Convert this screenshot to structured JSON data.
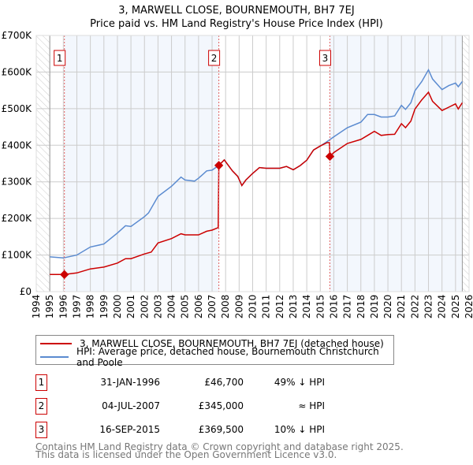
{
  "chart_data": {
    "type": "line",
    "title": "3, MARWELL CLOSE, BOURNEMOUTH, BH7 7EJ",
    "subtitle": "Price paid vs. HM Land Registry's House Price Index (HPI)",
    "xlim": [
      1994,
      2026
    ],
    "ylim": [
      0,
      700000
    ],
    "x_ticks": [
      "1994",
      "1995",
      "1996",
      "1997",
      "1998",
      "1999",
      "2000",
      "2001",
      "2002",
      "2003",
      "2004",
      "2005",
      "2006",
      "2007",
      "2008",
      "2009",
      "2010",
      "2011",
      "2012",
      "2013",
      "2014",
      "2015",
      "2016",
      "2017",
      "2018",
      "2019",
      "2020",
      "2021",
      "2022",
      "2023",
      "2024",
      "2025",
      "2026"
    ],
    "y_ticks": [
      {
        "v": 0,
        "label": "£0"
      },
      {
        "v": 100000,
        "label": "£100K"
      },
      {
        "v": 200000,
        "label": "£200K"
      },
      {
        "v": 300000,
        "label": "£300K"
      },
      {
        "v": 400000,
        "label": "£400K"
      },
      {
        "v": 500000,
        "label": "£500K"
      },
      {
        "v": 600000,
        "label": "£600K"
      },
      {
        "v": 700000,
        "label": "£700K"
      }
    ],
    "grid": true,
    "series": [
      {
        "name": "3, MARWELL CLOSE, BOURNEMOUTH, BH7 7EJ (detached house)",
        "color": "#cc0000",
        "x": [
          1995,
          1996.08,
          1997,
          1998,
          1999,
          2000,
          2000.6,
          2001,
          2002,
          2002.5,
          2003,
          2004,
          2004.7,
          2005,
          2006,
          2006.6,
          2007,
          2007.45,
          2007.5,
          2007.9,
          2008.5,
          2008.9,
          2009.2,
          2009.5,
          2010,
          2010.5,
          2011,
          2012,
          2012.5,
          2013,
          2013.5,
          2014,
          2014.5,
          2015,
          2015.5,
          2015.68,
          2015.71,
          2016,
          2017,
          2018,
          2018.5,
          2019,
          2019.5,
          2020,
          2020.5,
          2021,
          2021.3,
          2021.7,
          2022,
          2022.5,
          2023,
          2023.3,
          2024,
          2024.5,
          2025,
          2025.2,
          2025.5
        ],
        "y": [
          47000,
          46700,
          51000,
          62000,
          67000,
          78000,
          90000,
          90000,
          103000,
          108000,
          133000,
          145000,
          158000,
          155000,
          155000,
          165000,
          168000,
          175000,
          345000,
          360000,
          330000,
          315000,
          290000,
          305000,
          323000,
          339000,
          337000,
          337000,
          342000,
          333000,
          344000,
          359000,
          387000,
          398000,
          407000,
          407000,
          369500,
          380000,
          405000,
          416000,
          427000,
          438000,
          427000,
          429000,
          430000,
          459000,
          448000,
          466000,
          499000,
          524000,
          545000,
          520000,
          495000,
          504000,
          513000,
          499000,
          516000
        ]
      },
      {
        "name": "HPI: Average price, detached house, Bournemouth Christchurch and Poole",
        "color": "#5b8bd0",
        "x": [
          1995,
          1996,
          1997,
          1998,
          1999,
          2000,
          2000.6,
          2001,
          2002,
          2002.3,
          2003,
          2004,
          2004.7,
          2005,
          2005.7,
          2006,
          2006.6,
          2007,
          2007.5,
          2007.9,
          2008.5,
          2008.9,
          2009.2,
          2009.5,
          2010,
          2010.5,
          2011,
          2012,
          2012.5,
          2013,
          2013.5,
          2014,
          2014.5,
          2015,
          2015.5,
          2016,
          2017,
          2018,
          2018.5,
          2019,
          2019.5,
          2020,
          2020.5,
          2021,
          2021.3,
          2021.7,
          2022,
          2022.5,
          2023,
          2023.3,
          2024,
          2024.5,
          2025,
          2025.2,
          2025.5
        ],
        "y": [
          95000,
          92000,
          100000,
          122000,
          130000,
          160000,
          180000,
          178000,
          205000,
          215000,
          260000,
          288000,
          313000,
          305000,
          302000,
          310000,
          330000,
          332000,
          345000,
          360000,
          330000,
          315000,
          290000,
          305000,
          323000,
          339000,
          337000,
          337000,
          342000,
          333000,
          344000,
          359000,
          387000,
          398000,
          410000,
          423000,
          448000,
          463000,
          484000,
          484000,
          477000,
          477000,
          480000,
          509000,
          498000,
          516000,
          549000,
          574000,
          606000,
          581000,
          552000,
          563000,
          570000,
          560000,
          574000
        ]
      }
    ],
    "sales": [
      {
        "label": "1",
        "x": 2007.5,
        "xsale": 1996.08,
        "price": 46700
      },
      {
        "label": "2",
        "xsale": 2007.5,
        "price": 345000
      },
      {
        "label": "3",
        "xsale": 2015.71,
        "price": 369500
      }
    ],
    "data_start": 1995,
    "data_end": 2025.5,
    "legend_placement": "bottom"
  },
  "legend": [
    {
      "label": "3, MARWELL CLOSE, BOURNEMOUTH, BH7 7EJ (detached house)",
      "color": "#cc0000"
    },
    {
      "label": "HPI: Average price, detached house, Bournemouth Christchurch and Poole",
      "color": "#5b8bd0"
    }
  ],
  "transactions": [
    {
      "num": "1",
      "date": "31-JAN-1996",
      "price": "£46,700",
      "hpi": "49% ↓ HPI"
    },
    {
      "num": "2",
      "date": "04-JUL-2007",
      "price": "£345,000",
      "hpi": "≈ HPI"
    },
    {
      "num": "3",
      "date": "16-SEP-2015",
      "price": "£369,500",
      "hpi": "10% ↓ HPI"
    }
  ],
  "footer": {
    "line1": "Contains HM Land Registry data © Crown copyright and database right 2025.",
    "line2": "This data is licensed under the Open Government Licence v3.0."
  }
}
